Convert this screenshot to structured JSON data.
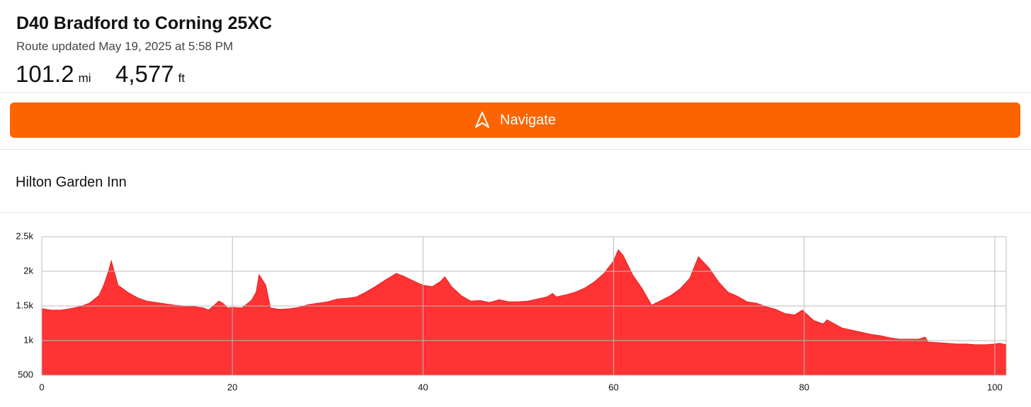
{
  "header": {
    "title": "D40 Bradford to Corning 25XC",
    "subtitle": "Route updated May 19, 2025 at 5:58 PM",
    "stats": [
      {
        "value": "101.2",
        "unit": "mi"
      },
      {
        "value": "4,577",
        "unit": "ft"
      }
    ]
  },
  "button": {
    "label": "Navigate"
  },
  "waypoint": {
    "label": "Hilton Garden Inn"
  },
  "chart_data": {
    "type": "area",
    "color": "#ff3333",
    "grid": true,
    "x": [
      0,
      1,
      2,
      3,
      4,
      5,
      6,
      6.5,
      7,
      7.3,
      8,
      9,
      10,
      11,
      12,
      13,
      14,
      15,
      16,
      17,
      17.5,
      18,
      18.6,
      19,
      19.5,
      20,
      21,
      22,
      22.5,
      22.8,
      23.5,
      24,
      25,
      26,
      27,
      28,
      29,
      30,
      31,
      32,
      33,
      34,
      35,
      36,
      37.2,
      38,
      39,
      40,
      41,
      41.8,
      42.3,
      43,
      44,
      45,
      46,
      47,
      48,
      49,
      50,
      51,
      52,
      53,
      53.6,
      54,
      55,
      56,
      57,
      58,
      59,
      60,
      60.5,
      61,
      62,
      63,
      64,
      65,
      66,
      67,
      68,
      68.9,
      70,
      71,
      72,
      73,
      74,
      75,
      76,
      77,
      78,
      79,
      79.8,
      81,
      82,
      82.4,
      84,
      85,
      86,
      87,
      88,
      89,
      90,
      91,
      92,
      92.7,
      93,
      94,
      95,
      96,
      97,
      98,
      99,
      100,
      100.5,
      101.2
    ],
    "values": [
      1460,
      1440,
      1440,
      1460,
      1490,
      1540,
      1650,
      1800,
      2000,
      2150,
      1800,
      1700,
      1620,
      1570,
      1550,
      1530,
      1510,
      1500,
      1490,
      1470,
      1440,
      1500,
      1570,
      1540,
      1470,
      1480,
      1470,
      1580,
      1700,
      1950,
      1800,
      1470,
      1450,
      1460,
      1480,
      1520,
      1540,
      1560,
      1600,
      1610,
      1630,
      1700,
      1780,
      1870,
      1970,
      1930,
      1860,
      1800,
      1780,
      1850,
      1920,
      1780,
      1650,
      1570,
      1580,
      1550,
      1590,
      1560,
      1560,
      1570,
      1600,
      1630,
      1680,
      1630,
      1660,
      1700,
      1760,
      1850,
      1970,
      2150,
      2310,
      2230,
      1950,
      1750,
      1510,
      1580,
      1650,
      1750,
      1900,
      2210,
      2050,
      1850,
      1700,
      1640,
      1560,
      1540,
      1490,
      1450,
      1390,
      1370,
      1440,
      1290,
      1240,
      1300,
      1180,
      1150,
      1120,
      1090,
      1070,
      1040,
      1020,
      1020,
      1020,
      1050,
      980,
      970,
      960,
      950,
      950,
      940,
      940,
      950,
      960,
      940
    ],
    "xlim": [
      0,
      101.2
    ],
    "xticks": [
      0,
      20,
      40,
      60,
      80,
      100
    ],
    "ylim": [
      500,
      2500
    ],
    "yticks": [
      500,
      {
        "value": 1000,
        "label": "1k"
      },
      {
        "value": 1500,
        "label": "1.5k"
      },
      {
        "value": 2000,
        "label": "2k"
      },
      {
        "value": 2500,
        "label": "2.5k"
      }
    ]
  }
}
